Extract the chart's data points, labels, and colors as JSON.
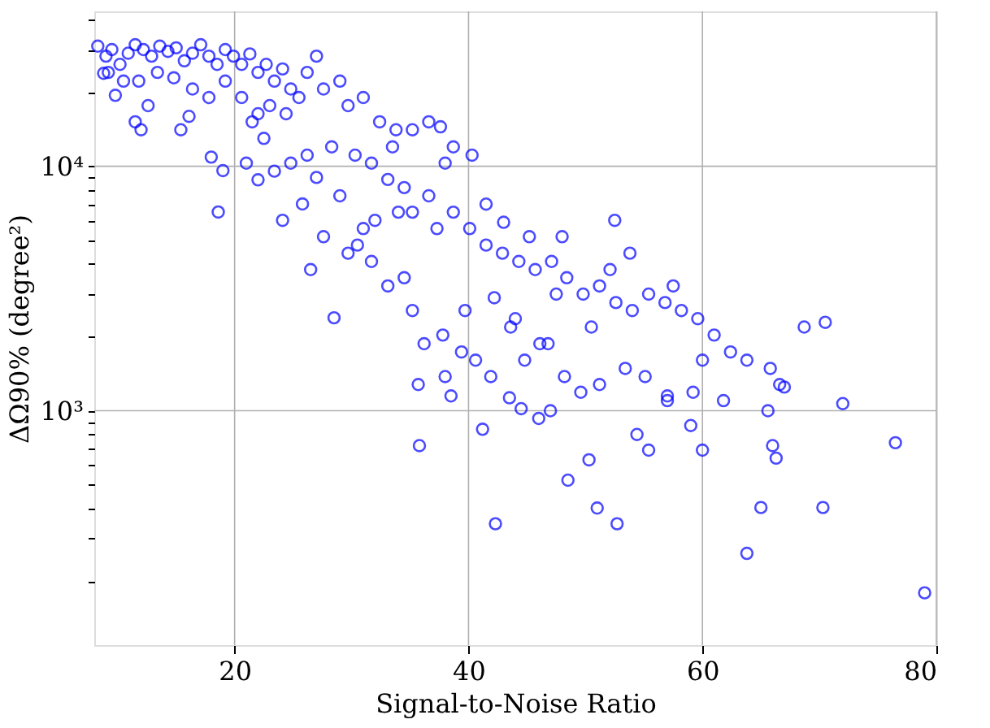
{
  "chart_data": {
    "type": "scatter",
    "xlabel": "Signal-to-Noise Ratio",
    "ylabel": "ΔΩ90% (degree²)",
    "log": "y",
    "grid": true,
    "marker": "circle",
    "xlim": [
      8,
      80
    ],
    "xticks": [
      20,
      40,
      60,
      80
    ],
    "ylim": [
      110,
      43000
    ],
    "yticks": [
      {
        "value": 200,
        "label": null
      },
      {
        "value": 300,
        "label": null
      },
      {
        "value": 400,
        "label": null
      },
      {
        "value": 500,
        "label": null
      },
      {
        "value": 600,
        "label": null
      },
      {
        "value": 700,
        "label": null
      },
      {
        "value": 800,
        "label": null
      },
      {
        "value": 900,
        "label": null
      },
      {
        "value": 1000,
        "label": "10³"
      },
      {
        "value": 2000,
        "label": null
      },
      {
        "value": 3000,
        "label": null
      },
      {
        "value": 4000,
        "label": null
      },
      {
        "value": 5000,
        "label": null
      },
      {
        "value": 6000,
        "label": null
      },
      {
        "value": 7000,
        "label": null
      },
      {
        "value": 8000,
        "label": null
      },
      {
        "value": 9000,
        "label": null
      },
      {
        "value": 10000,
        "label": "10⁴"
      },
      {
        "value": 20000,
        "label": null
      },
      {
        "value": 30000,
        "label": null
      },
      {
        "value": 40000,
        "label": null
      }
    ],
    "series": [
      {
        "color": "#0000ff",
        "x": [
          8.3,
          9.0,
          9.5,
          10.2,
          10.9,
          11.5,
          12.2,
          12.9,
          13.6,
          14.3,
          15.0,
          15.7,
          16.4,
          17.1,
          17.8,
          18.5,
          19.2,
          19.9,
          20.6,
          21.3,
          22.0,
          22.7,
          23.4,
          24.1,
          24.8,
          9.2,
          10.5,
          11.8,
          13.4,
          14.8,
          16.4,
          17.8,
          19.2,
          20.6,
          22.0,
          23.0,
          24.4,
          25.5,
          26.2,
          27.0,
          27.6,
          29.0,
          29.7,
          31.0,
          32.4,
          33.8,
          35.2,
          36.6,
          37.6,
          38.7,
          12.6,
          11.5,
          12.0,
          9.8,
          8.8,
          15.4,
          16.1,
          19.0,
          18.6,
          21.0,
          22.0,
          23.4,
          24.8,
          26.2,
          28.3,
          30.3,
          31.7,
          33.1,
          34.5,
          36.6,
          35.2,
          37.3,
          38.7,
          40.1,
          41.5,
          42.9,
          44.3,
          45.7,
          47.1,
          48.4,
          49.8,
          51.2,
          52.6,
          54.0,
          55.4,
          56.8,
          58.2,
          59.6,
          61.0,
          62.4,
          63.8,
          65.8,
          66.6,
          68.7,
          24.1,
          25.8,
          27.6,
          29.7,
          31.7,
          33.1,
          34.5,
          35.2,
          36.2,
          37.8,
          39.4,
          40.6,
          41.9,
          43.6,
          44.8,
          46.8,
          48.2,
          49.6,
          51.2,
          53.4,
          55.1,
          57.0,
          59.2,
          60.0,
          61.8,
          26.5,
          28.5,
          30.5,
          32.0,
          34.0,
          35.7,
          38.0,
          39.7,
          42.2,
          44.0,
          46.1,
          47.5,
          50.5,
          52.1,
          53.8,
          57.5,
          22.5,
          18.0,
          21.5,
          27.0,
          29.0,
          31.0,
          33.5,
          38.0,
          40.3,
          41.5,
          43.0,
          45.2,
          48.0,
          52.5,
          35.8,
          42.3,
          51.0,
          52.7,
          41.2,
          43.5,
          44.5,
          48.5,
          50.3,
          55.4,
          59.0,
          60.0,
          63.8,
          65.0,
          66.0,
          66.3,
          70.3,
          70.5,
          72.0,
          76.5,
          79.0,
          65.6,
          67.0,
          54.4,
          57.0,
          47.0,
          46.0,
          38.5
        ],
        "values": [
          31000,
          28200,
          30000,
          26100,
          29000,
          31400,
          30000,
          28200,
          31000,
          29500,
          30500,
          27000,
          29000,
          31400,
          28200,
          26100,
          30000,
          28200,
          26100,
          28800,
          24200,
          26100,
          22300,
          25000,
          20700,
          24200,
          22300,
          22300,
          24200,
          23000,
          20700,
          19100,
          22300,
          19100,
          16400,
          17700,
          16400,
          19100,
          24200,
          28200,
          20700,
          22300,
          17700,
          19100,
          15200,
          14100,
          14100,
          15200,
          14500,
          12000,
          17700,
          15200,
          14100,
          19500,
          24000,
          14100,
          16000,
          9600,
          6500,
          10300,
          8800,
          9550,
          10300,
          11100,
          12000,
          11100,
          10300,
          8830,
          8180,
          7570,
          6490,
          5560,
          6490,
          5560,
          4760,
          4410,
          4080,
          3780,
          4080,
          3500,
          3000,
          3240,
          2770,
          2570,
          3000,
          2770,
          2570,
          2380,
          2040,
          1740,
          1610,
          1490,
          1280,
          2200,
          6010,
          7010,
          5150,
          4410,
          4080,
          3240,
          3500,
          2570,
          1880,
          2040,
          1740,
          1610,
          1380,
          2200,
          1610,
          1880,
          1380,
          1190,
          1280,
          1490,
          1380,
          1100,
          1190,
          1610,
          1100,
          3780,
          2400,
          4760,
          6010,
          6490,
          1280,
          1380,
          2570,
          2900,
          2380,
          1880,
          3000,
          2200,
          3780,
          4410,
          3240,
          13000,
          10900,
          15200,
          9000,
          7570,
          5560,
          12000,
          10300,
          11100,
          7000,
          5900,
          5150,
          5150,
          6010,
          720,
          345,
          400,
          345,
          840,
          1130,
          1020,
          520,
          630,
          690,
          870,
          690,
          261,
          402,
          720,
          640,
          402,
          2300,
          1070,
          740,
          180,
          1000,
          1250,
          800,
          1150,
          1000,
          930,
          1150
        ]
      }
    ]
  }
}
